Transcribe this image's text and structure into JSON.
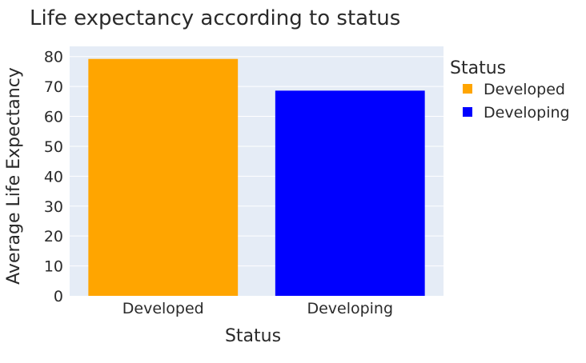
{
  "chart_data": {
    "type": "bar",
    "title": "Life expectancy according to status",
    "xlabel": "Status",
    "ylabel": "Average Life Expectancy",
    "categories": [
      "Developed",
      "Developing"
    ],
    "values": [
      79.2,
      68.6
    ],
    "colors": [
      "#FFA500",
      "#0000FF"
    ],
    "ylim": [
      0,
      83.4
    ],
    "yticks": [
      0,
      10,
      20,
      30,
      40,
      50,
      60,
      70,
      80
    ],
    "grid": true,
    "plot_bgcolor": "#E5ECF6",
    "legend": {
      "title": "Status",
      "placement": "right",
      "items": [
        {
          "label": "Developed",
          "color": "#FFA500"
        },
        {
          "label": "Developing",
          "color": "#0000FF"
        }
      ]
    }
  }
}
